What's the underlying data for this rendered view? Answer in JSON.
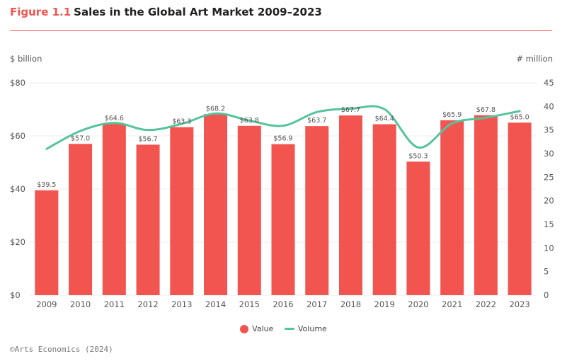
{
  "header": {
    "figure_number": "Figure 1.1",
    "title": "Sales in the Global Art Market 2009–2023"
  },
  "colors": {
    "accent": "#f2554f",
    "bar": "#f2554f",
    "line": "#55c49b",
    "grid": "#ececec"
  },
  "chart_data": {
    "type": "bar",
    "title": "Sales in the Global Art Market 2009–2023",
    "categories": [
      "2009",
      "2010",
      "2011",
      "2012",
      "2013",
      "2014",
      "2015",
      "2016",
      "2017",
      "2018",
      "2019",
      "2020",
      "2021",
      "2022",
      "2023"
    ],
    "y_left_label": "$ billion",
    "y_right_label": "# million",
    "y_left_range": [
      0,
      80
    ],
    "y_left_ticks": [
      "$0",
      "$20",
      "$40",
      "$60",
      "$80"
    ],
    "y_right_range": [
      0,
      45
    ],
    "y_right_ticks": [
      "0",
      "5",
      "10",
      "15",
      "20",
      "25",
      "30",
      "35",
      "40",
      "45"
    ],
    "grid": true,
    "legend_position": "bottom-center",
    "series": [
      {
        "name": "Value",
        "type": "bar",
        "axis": "left",
        "values": [
          39.5,
          57.0,
          64.6,
          56.7,
          63.3,
          68.2,
          63.8,
          56.9,
          63.7,
          67.7,
          64.4,
          50.3,
          65.9,
          67.8,
          65.0
        ],
        "labels": [
          "$39.5",
          "$57.0",
          "$64.6",
          "$56.7",
          "$63.3",
          "$68.2",
          "$63.8",
          "$56.9",
          "$63.7",
          "$67.7",
          "$64.4",
          "$50.3",
          "$65.9",
          "$67.8",
          "$65.0"
        ]
      },
      {
        "name": "Volume",
        "type": "line",
        "axis": "right",
        "values": [
          31.0,
          34.8,
          36.5,
          35.0,
          36.3,
          38.5,
          37.0,
          35.9,
          38.8,
          39.5,
          39.4,
          31.3,
          36.4,
          37.6,
          39.0
        ]
      }
    ]
  },
  "source": "©Arts Economics (2024)"
}
